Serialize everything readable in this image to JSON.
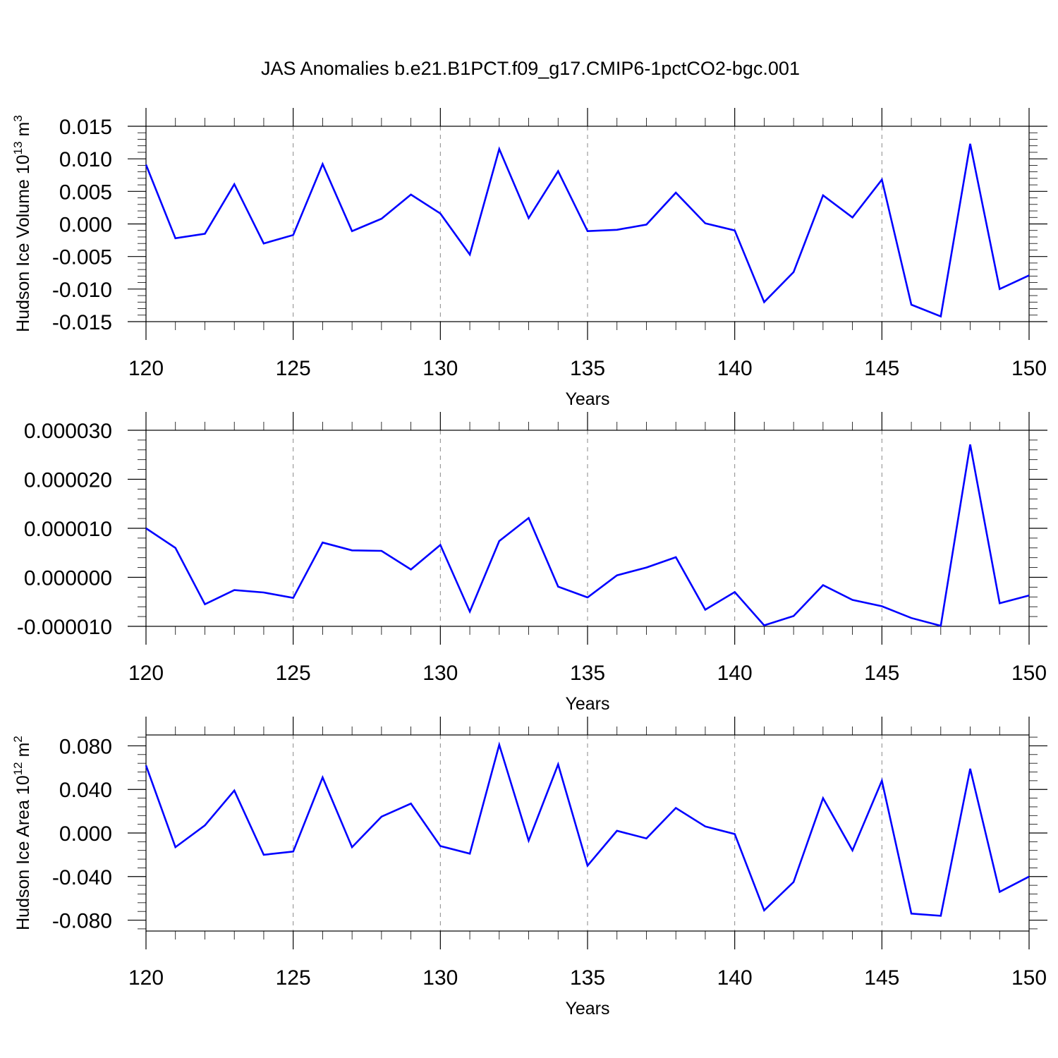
{
  "figure": {
    "title": "JAS Anomalies b.e21.B1PCT.f09_g17.CMIP6-1pctCO2-bgc.001"
  },
  "colors": {
    "series": "#0000ff",
    "grid": "#888888",
    "axis": "#000000"
  },
  "chart_data": [
    {
      "type": "line",
      "ylabel": "Hudson Ice Volume 10",
      "ylabel_sup": "13",
      "ylabel_unit": " m",
      "ylabel_unit_sup": "3",
      "xlabel": "Years",
      "xlim": [
        120,
        150
      ],
      "ylim": [
        -0.015,
        0.015
      ],
      "x_ticks": [
        120,
        125,
        130,
        135,
        140,
        145,
        150
      ],
      "x_tick_labels": [
        "120",
        "125",
        "130",
        "135",
        "140",
        "145",
        "150"
      ],
      "y_ticks": [
        -0.015,
        -0.01,
        -0.005,
        0,
        0.005,
        0.01,
        0.015
      ],
      "y_tick_labels": [
        "-0.015",
        "-0.010",
        "-0.005",
        "0.000",
        "0.005",
        "0.010",
        "0.015"
      ],
      "grid": "dashed vertical at major x ticks",
      "x": [
        120,
        121,
        122,
        123,
        124,
        125,
        126,
        127,
        128,
        129,
        130,
        131,
        132,
        133,
        134,
        135,
        136,
        137,
        138,
        139,
        140,
        141,
        142,
        143,
        144,
        145,
        146,
        147,
        148,
        149,
        150
      ],
      "series": [
        {
          "values": [
            0.0091,
            -0.0022,
            -0.0015,
            0.0061,
            -0.003,
            -0.0017,
            0.0092,
            -0.0011,
            0.0008,
            0.0045,
            0.0016,
            -0.0047,
            0.0115,
            0.0009,
            0.0081,
            -0.0011,
            -0.0009,
            -0.0001,
            0.0048,
            0.0001,
            -0.001,
            -0.012,
            -0.0074,
            0.0044,
            0.001,
            0.0068,
            -0.0124,
            -0.0142,
            0.0123,
            -0.01,
            -0.0079
          ]
        }
      ]
    },
    {
      "type": "line",
      "ylabel": "",
      "xlabel": "Years",
      "xlim": [
        120,
        150
      ],
      "ylim": [
        -1e-05,
        3e-05
      ],
      "x_ticks": [
        120,
        125,
        130,
        135,
        140,
        145,
        150
      ],
      "x_tick_labels": [
        "120",
        "125",
        "130",
        "135",
        "140",
        "145",
        "150"
      ],
      "y_ticks": [
        -1e-05,
        0,
        1e-05,
        2e-05,
        3e-05
      ],
      "y_tick_labels": [
        "-0.000010",
        "0.000000",
        "0.000010",
        "0.000020",
        "0.000030"
      ],
      "grid": "dashed vertical at major x ticks",
      "x": [
        120,
        121,
        122,
        123,
        124,
        125,
        126,
        127,
        128,
        129,
        130,
        131,
        132,
        133,
        134,
        135,
        136,
        137,
        138,
        139,
        140,
        141,
        142,
        143,
        144,
        145,
        146,
        147,
        148,
        149,
        150
      ],
      "series": [
        {
          "values": [
            1e-05,
            6e-06,
            -5.5e-06,
            -2.6e-06,
            -3.1e-06,
            -4.2e-06,
            7.1e-06,
            5.5e-06,
            5.4e-06,
            1.6e-06,
            6.6e-06,
            -7e-06,
            7.4e-06,
            1.21e-05,
            -1.9e-06,
            -4.1e-06,
            4e-07,
            2e-06,
            4.1e-06,
            -6.6e-06,
            -3e-06,
            -9.8e-06,
            -7.9e-06,
            -1.6e-06,
            -4.6e-06,
            -5.9e-06,
            -8.3e-06,
            -9.9e-06,
            2.71e-05,
            -5.3e-06,
            -3.7e-06
          ]
        }
      ]
    },
    {
      "type": "line",
      "ylabel": "Hudson Ice Area 10",
      "ylabel_sup": "12",
      "ylabel_unit": " m",
      "ylabel_unit_sup": "2",
      "xlabel": "Years",
      "xlim": [
        120,
        150
      ],
      "ylim": [
        -0.09,
        0.09
      ],
      "x_ticks": [
        120,
        125,
        130,
        135,
        140,
        145,
        150
      ],
      "x_tick_labels": [
        "120",
        "125",
        "130",
        "135",
        "140",
        "145",
        "150"
      ],
      "y_ticks": [
        -0.08,
        -0.04,
        0,
        0.04,
        0.08
      ],
      "y_tick_labels": [
        "-0.080",
        "-0.040",
        "0.000",
        "0.040",
        "0.080"
      ],
      "grid": "dashed vertical at major x ticks",
      "x": [
        120,
        121,
        122,
        123,
        124,
        125,
        126,
        127,
        128,
        129,
        130,
        131,
        132,
        133,
        134,
        135,
        136,
        137,
        138,
        139,
        140,
        141,
        142,
        143,
        144,
        145,
        146,
        147,
        148,
        149,
        150
      ],
      "series": [
        {
          "values": [
            0.062,
            -0.013,
            0.007,
            0.039,
            -0.02,
            -0.017,
            0.051,
            -0.013,
            0.015,
            0.027,
            -0.012,
            -0.019,
            0.081,
            -0.007,
            0.063,
            -0.03,
            0.002,
            -0.005,
            0.023,
            0.006,
            -0.001,
            -0.071,
            -0.045,
            0.032,
            -0.016,
            0.048,
            -0.074,
            -0.076,
            0.059,
            -0.054,
            -0.04
          ]
        }
      ]
    }
  ]
}
